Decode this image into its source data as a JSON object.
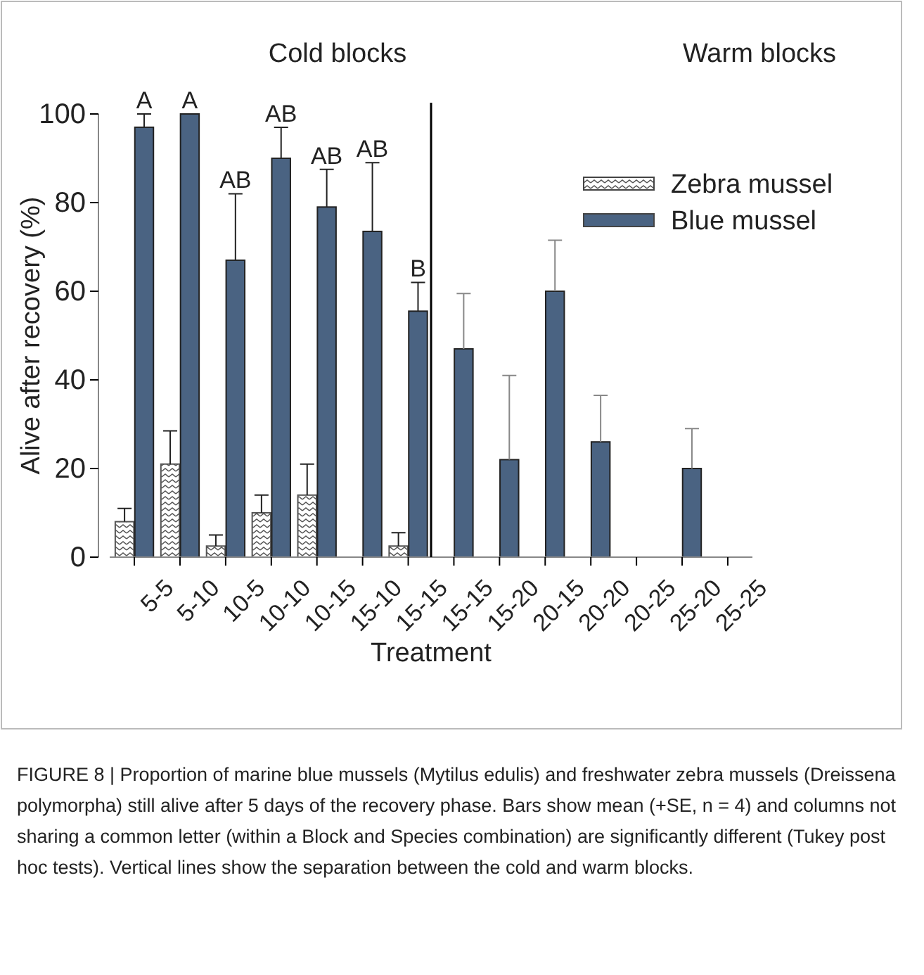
{
  "chart_data": {
    "type": "bar",
    "xlabel": "Treatment",
    "ylabel": "Alive after recovery (%)",
    "categories": [
      "5-5",
      "5-10",
      "10-5",
      "10-10",
      "10-15",
      "15-10",
      "15-15",
      "15-15",
      "15-20",
      "20-15",
      "20-20",
      "20-25",
      "25-20",
      "25-25"
    ],
    "series": [
      {
        "name": "Zebra mussel",
        "color": "#555555",
        "values": [
          8,
          21,
          2.5,
          10,
          14,
          0,
          2.5,
          null,
          null,
          null,
          null,
          null,
          null,
          null
        ],
        "errors": [
          [
            8,
            11
          ],
          [
            21,
            28.5
          ],
          [
            2.5,
            5
          ],
          [
            10,
            14
          ],
          [
            14,
            21
          ],
          null,
          [
            2.5,
            5.5
          ],
          null,
          null,
          null,
          null,
          null,
          null,
          null
        ]
      },
      {
        "name": "Blue mussel",
        "color": "#4a6382",
        "values": [
          97,
          100,
          67,
          90,
          79,
          73.5,
          55.5,
          47,
          22,
          60,
          26,
          0,
          20,
          0
        ],
        "errors": [
          [
            97,
            100
          ],
          null,
          [
            67,
            82
          ],
          [
            90,
            97
          ],
          [
            79,
            87.5
          ],
          [
            73.5,
            89
          ],
          [
            55.5,
            62
          ],
          [
            47,
            59.5
          ],
          [
            22,
            41
          ],
          [
            60,
            71.5
          ],
          [
            26,
            36.5
          ],
          null,
          [
            20,
            29
          ],
          null
        ]
      }
    ],
    "ylim": [
      0,
      100
    ],
    "yticks": [
      0,
      20,
      40,
      60,
      80,
      100
    ],
    "grid": false,
    "legend": "top right",
    "annotations": [
      "Cold blocks",
      "Warm blocks",
      "A",
      "A",
      "AB",
      "AB",
      "AB",
      "AB",
      "B",
      "FIGURE 8 | Proportion of marine blue mussels (Mytilus edulis) and freshwater zebra mussels (Dreissena polymorpha) still alive after 5 days of the recovery phase. Bars show mean (+SE, n = 4) and columns not sharing a common letter (within a Block and Species combination) are significantly different (Tukey post hoc tests). Vertical lines show the separation between the cold and warm blocks."
    ]
  }
}
